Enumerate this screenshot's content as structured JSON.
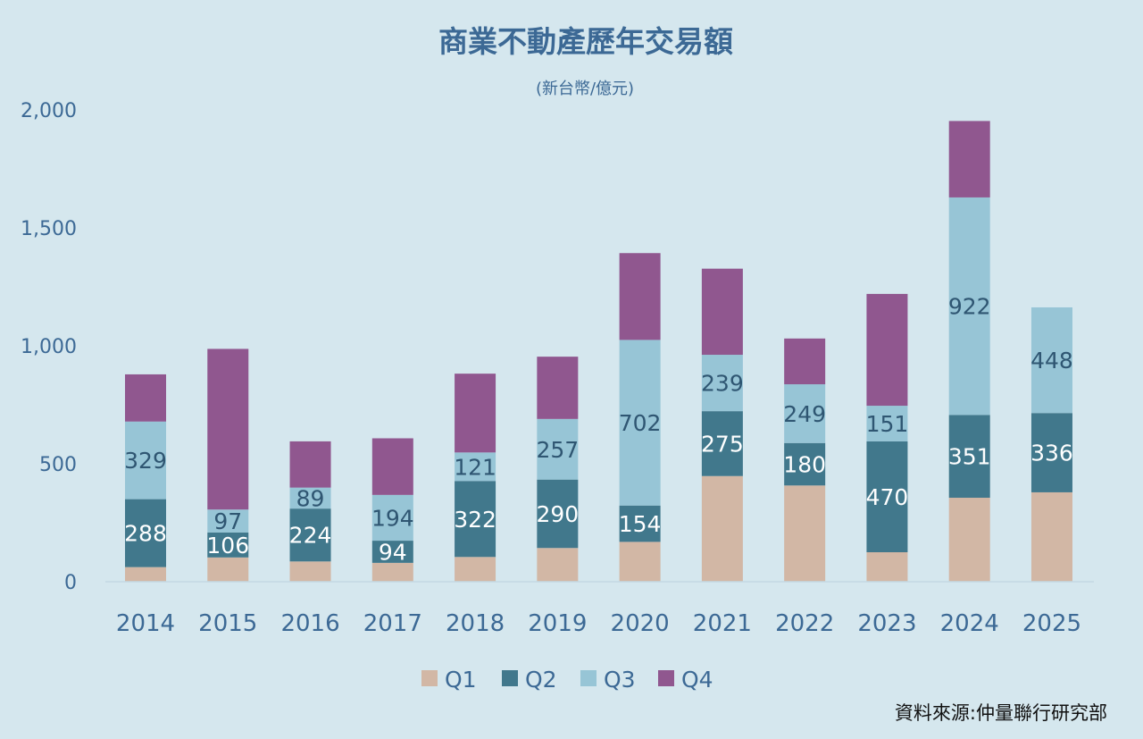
{
  "chart_data": {
    "type": "bar",
    "stacked": true,
    "title": "商業不動產歷年交易額",
    "subtitle": "(新台幣/億元)",
    "source": "資料來源:仲量聯行研究部",
    "xlabel": "",
    "ylabel": "",
    "ylim": [
      0,
      2000
    ],
    "yticks": [
      0,
      500,
      1000,
      1500,
      2000
    ],
    "ytick_labels": [
      "0",
      "500",
      "1,000",
      "1,500",
      "2,000"
    ],
    "grid": false,
    "legend_position": "bottom",
    "categories": [
      "2014",
      "2015",
      "2016",
      "2017",
      "2018",
      "2019",
      "2020",
      "2021",
      "2022",
      "2023",
      "2024",
      "2025"
    ],
    "series": [
      {
        "name": "Q1",
        "color": "#d2b7a5",
        "show_labels": false,
        "label_color": "",
        "values": [
          62,
          103,
          86,
          80,
          105,
          143,
          169,
          448,
          408,
          125,
          356,
          379
        ]
      },
      {
        "name": "Q2",
        "color": "#41788c",
        "show_labels": true,
        "label_color": "#ffffff",
        "values": [
          288,
          106,
          224,
          94,
          322,
          290,
          154,
          275,
          180,
          470,
          351,
          336
        ]
      },
      {
        "name": "Q3",
        "color": "#97c5d6",
        "show_labels": true,
        "label_color": "#2f5672",
        "values": [
          329,
          97,
          89,
          194,
          121,
          257,
          702,
          239,
          249,
          151,
          922,
          448
        ]
      },
      {
        "name": "Q4",
        "color": "#90578f",
        "show_labels": false,
        "label_color": "",
        "values": [
          200,
          681,
          196,
          240,
          334,
          264,
          368,
          365,
          194,
          474,
          324,
          null
        ]
      }
    ],
    "colors": {
      "background": "#d5e7ee",
      "text": "#3c6995",
      "axis": "#c3d9e3"
    }
  }
}
